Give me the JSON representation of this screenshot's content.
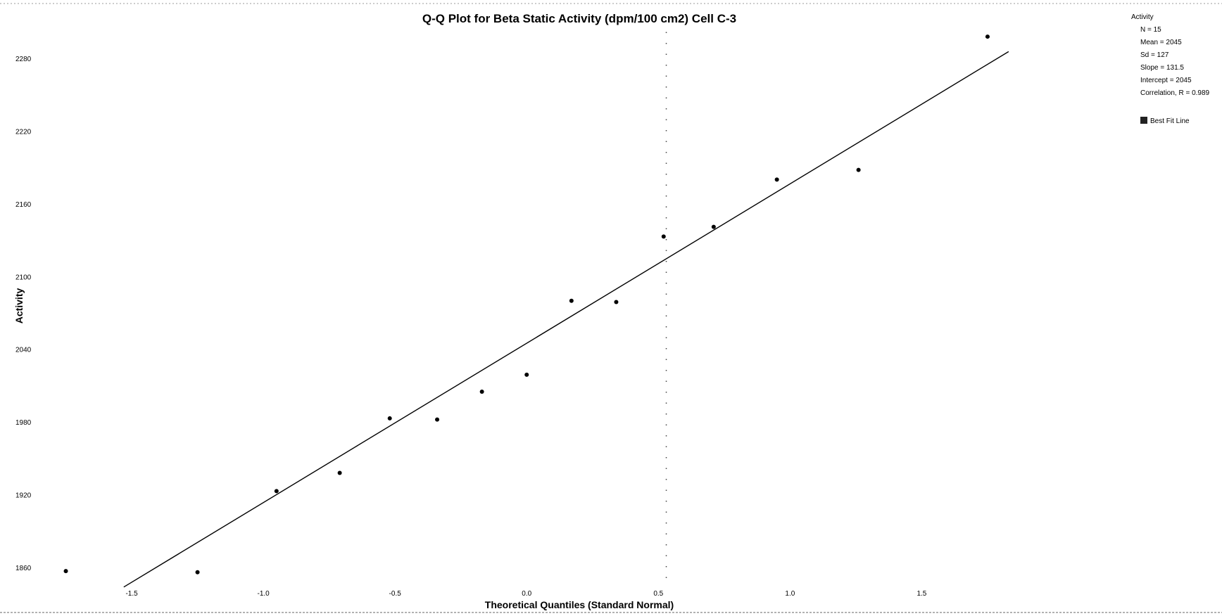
{
  "chart_data": {
    "type": "scatter",
    "title": "Q-Q Plot for Beta Static Activity (dpm/100 cm2) Cell C-3",
    "xlabel": "Theoretical Quantiles (Standard Normal)",
    "ylabel": "Activity",
    "xlim": [
      -2.0,
      2.25
    ],
    "ylim": [
      1835,
      2305
    ],
    "x_ticks": [
      -1.5,
      -1.0,
      -0.5,
      0.0,
      0.5,
      1.0,
      1.5
    ],
    "x_tick_labels": [
      "-1.5",
      "-1.0",
      "-0.5",
      "0.0",
      "0.5",
      "1.0",
      "1.5"
    ],
    "y_ticks": [
      1860,
      1920,
      1980,
      2040,
      2100,
      2160,
      2220,
      2280
    ],
    "y_tick_labels": [
      "1860",
      "1920",
      "1980",
      "2040",
      "2100",
      "2160",
      "2220",
      "2280"
    ],
    "grid": false,
    "legend_position": "top-right",
    "reference_line_x": 0.53,
    "series": [
      {
        "name": "Activity",
        "type": "scatter",
        "color": "#000000",
        "points": [
          {
            "x": -1.75,
            "y": 1857
          },
          {
            "x": -1.25,
            "y": 1856
          },
          {
            "x": -0.95,
            "y": 1923
          },
          {
            "x": -0.71,
            "y": 1938
          },
          {
            "x": -0.52,
            "y": 1983
          },
          {
            "x": -0.34,
            "y": 1982
          },
          {
            "x": -0.17,
            "y": 2005
          },
          {
            "x": 0.0,
            "y": 2019
          },
          {
            "x": 0.17,
            "y": 2080
          },
          {
            "x": 0.34,
            "y": 2079
          },
          {
            "x": 0.52,
            "y": 2133
          },
          {
            "x": 0.71,
            "y": 2141
          },
          {
            "x": 0.95,
            "y": 2180
          },
          {
            "x": 1.26,
            "y": 2188
          },
          {
            "x": 1.75,
            "y": 2298
          }
        ]
      },
      {
        "name": "Best Fit Line",
        "type": "line",
        "color": "#000000",
        "slope": 131.5,
        "intercept": 2045,
        "x_range": [
          -1.53,
          1.83
        ]
      }
    ],
    "legend": {
      "heading": "Activity",
      "stats": [
        "N = 15",
        "Mean = 2045",
        "Sd = 127",
        "Slope = 131.5",
        "Intercept = 2045",
        "Correlation, R = 0.989"
      ],
      "entries": [
        "Best Fit Line"
      ]
    }
  }
}
